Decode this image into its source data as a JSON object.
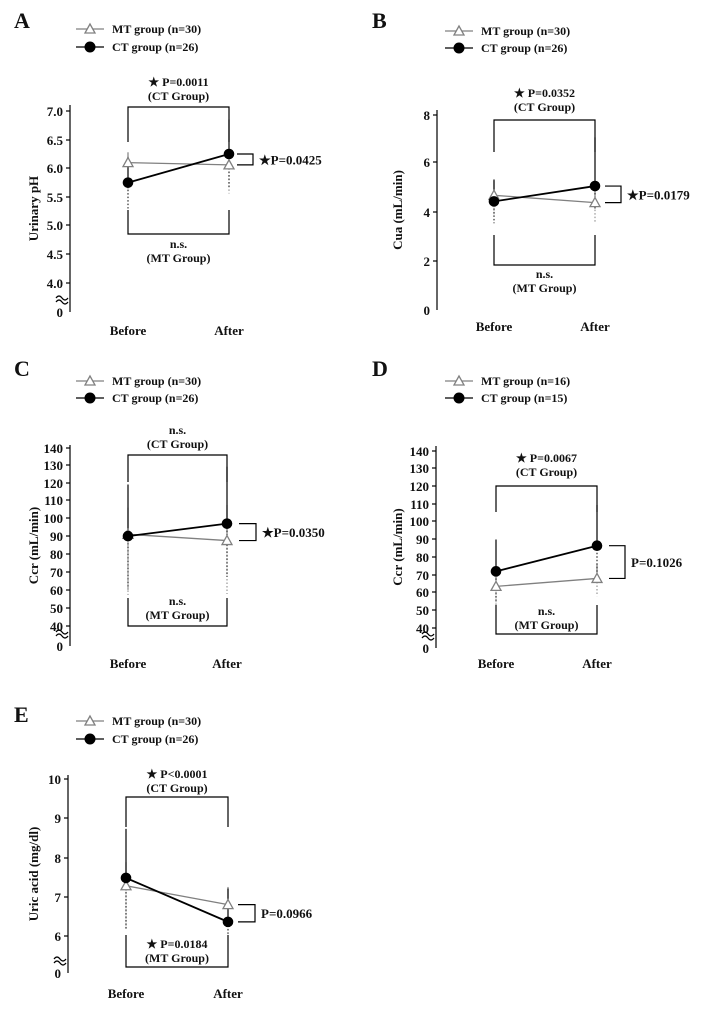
{
  "legend_labels": {
    "mt": "MT group",
    "ct": "CT group"
  },
  "colors": {
    "mt": "#808080",
    "ct": "#000000"
  },
  "chart_data": [
    {
      "panel": "A",
      "type": "line",
      "ylabel": "Urinary pH",
      "categories": [
        "Before",
        "After"
      ],
      "y_ticks": [
        "7.0",
        "6.5",
        "6.0",
        "5.5",
        "5.0",
        "4.5",
        "4.0",
        "0"
      ],
      "series": [
        {
          "name": "MT group (n=30)",
          "values": [
            6.1,
            6.06
          ],
          "err_up": [
            0.18,
            0.2
          ],
          "err_down": [
            0.5,
            0.5
          ]
        },
        {
          "name": "CT group (n=26)",
          "values": [
            5.75,
            6.25
          ],
          "err_up": [
            0.45,
            0.6
          ],
          "err_down": [
            0.45,
            0.6
          ]
        }
      ],
      "bracket_top": {
        "line1": "★ P=0.0011",
        "line2": "(CT Group)"
      },
      "bracket_bottom": {
        "line1": "n.s.",
        "line2": "(MT Group)"
      },
      "side_label": "★P=0.0425"
    },
    {
      "panel": "B",
      "type": "line",
      "ylabel": "Cua (mL/min)",
      "categories": [
        "Before",
        "After"
      ],
      "y_ticks": [
        "8",
        "6",
        "4",
        "2",
        "0"
      ],
      "series": [
        {
          "name": "MT group (n=30)",
          "values": [
            4.7,
            4.4
          ],
          "err_up": [
            0.6,
            0.6
          ],
          "err_down": [
            0.8,
            0.8
          ]
        },
        {
          "name": "CT group (n=26)",
          "values": [
            4.45,
            5.08
          ],
          "err_up": [
            0.9,
            2.0
          ],
          "err_down": [
            0.9,
            1.0
          ]
        }
      ],
      "bracket_top": {
        "line1": "★ P=0.0352",
        "line2": "(CT Group)"
      },
      "bracket_bottom": {
        "line1": "n.s.",
        "line2": "(MT Group)"
      },
      "side_label": "★P=0.0179"
    },
    {
      "panel": "C",
      "type": "line",
      "ylabel": "Ccr (mL/min)",
      "categories": [
        "Before",
        "After"
      ],
      "y_ticks": [
        "140",
        "130",
        "120",
        "110",
        "100",
        "90",
        "80",
        "70",
        "60",
        "50",
        "40",
        "0"
      ],
      "series": [
        {
          "name": "MT group (n=30)",
          "values": [
            91.5,
            88
          ],
          "err_up": [
            15,
            20
          ],
          "err_down": [
            34,
            30
          ]
        },
        {
          "name": "CT group (n=26)",
          "values": [
            90.5,
            97.5
          ],
          "err_up": [
            29,
            32
          ],
          "err_down": [
            30,
            30
          ]
        }
      ],
      "bracket_top": {
        "line1": "n.s.",
        "line2": "(CT Group)"
      },
      "bracket_bottom": {
        "line1": "n.s.",
        "line2": "(MT Group)"
      },
      "side_label": "★P=0.0350"
    },
    {
      "panel": "D",
      "type": "line",
      "ylabel": "Ccr (mL/min)",
      "categories": [
        "Before",
        "After"
      ],
      "y_ticks": [
        "140",
        "130",
        "120",
        "110",
        "100",
        "90",
        "80",
        "70",
        "60",
        "50",
        "40",
        "0"
      ],
      "series": [
        {
          "name": "MT group (n=16)",
          "values": [
            63.5,
            68
          ],
          "err_up": [
            6,
            8
          ],
          "err_down": [
            14,
            10
          ]
        },
        {
          "name": "CT group (n=15)",
          "values": [
            72,
            86.5
          ],
          "err_up": [
            18,
            23
          ],
          "err_down": [
            18,
            20
          ]
        }
      ],
      "bracket_top": {
        "line1": "★ P=0.0067",
        "line2": "(CT Group)"
      },
      "bracket_bottom": {
        "line1": "n.s.",
        "line2": "(MT Group)"
      },
      "side_label": "P=0.1026"
    },
    {
      "panel": "E",
      "type": "line",
      "ylabel": "Uric acid (mg/dl)",
      "categories": [
        "Before",
        "After"
      ],
      "y_ticks": [
        "10",
        "9",
        "8",
        "7",
        "6",
        "0"
      ],
      "series": [
        {
          "name": "MT group (n=30)",
          "values": [
            7.28,
            6.8
          ],
          "err_up": [
            0.6,
            0.45
          ],
          "err_down": [
            1.1,
            0.9
          ]
        },
        {
          "name": "CT group (n=26)",
          "values": [
            7.48,
            6.36
          ],
          "err_up": [
            1.25,
            0.85
          ],
          "err_down": [
            1.3,
            0.3
          ]
        }
      ],
      "bracket_top": {
        "line1": "★ P<0.0001",
        "line2": "(CT Group)"
      },
      "bracket_bottom": {
        "line1": "★ P=0.0184",
        "line2": "(MT Group)"
      },
      "side_label": "P=0.0966"
    }
  ]
}
